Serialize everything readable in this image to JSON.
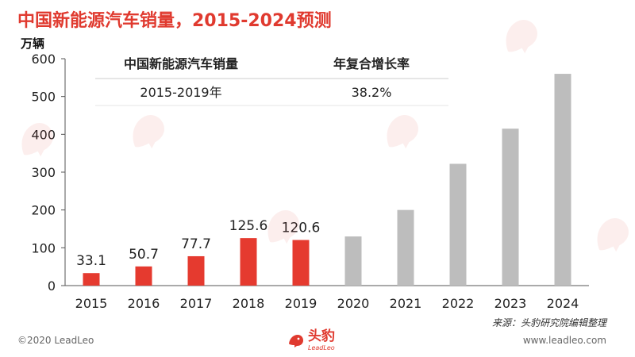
{
  "title": "中国新能源汽车销量，2015-2024预测",
  "unit_label": "万辆",
  "source": "来源：头豹研究院编辑整理",
  "footer": {
    "copyright": "©2020 LeadLeo",
    "website": "www.leadleo.com",
    "logo_text": "头豹",
    "logo_subtext": "LeadLeo"
  },
  "info_table": {
    "headers": [
      "中国新能源汽车销量",
      "年复合增长率"
    ],
    "row": [
      "2015-2019年",
      "38.2%"
    ]
  },
  "colors": {
    "actual": "#e53a2f",
    "forecast": "#bdbdbd",
    "title": "#e03a2f"
  },
  "chart_data": {
    "type": "bar",
    "title": "中国新能源汽车销量，2015-2024预测",
    "ylabel": "万辆",
    "categories": [
      "2015",
      "2016",
      "2017",
      "2018",
      "2019",
      "2020",
      "2021",
      "2022",
      "2023",
      "2024"
    ],
    "values": [
      33.1,
      50.7,
      77.7,
      125.6,
      120.6,
      130,
      200,
      322,
      415,
      560
    ],
    "data_labels": [
      "33.1",
      "50.7",
      "77.7",
      "125.6",
      "120.6",
      null,
      null,
      null,
      null,
      null
    ],
    "bar_status": [
      "actual",
      "actual",
      "actual",
      "actual",
      "actual",
      "forecast",
      "forecast",
      "forecast",
      "forecast",
      "forecast"
    ],
    "ylim": [
      0,
      600
    ],
    "yticks": [
      0,
      100,
      200,
      300,
      400,
      500,
      600
    ],
    "grid": false
  }
}
